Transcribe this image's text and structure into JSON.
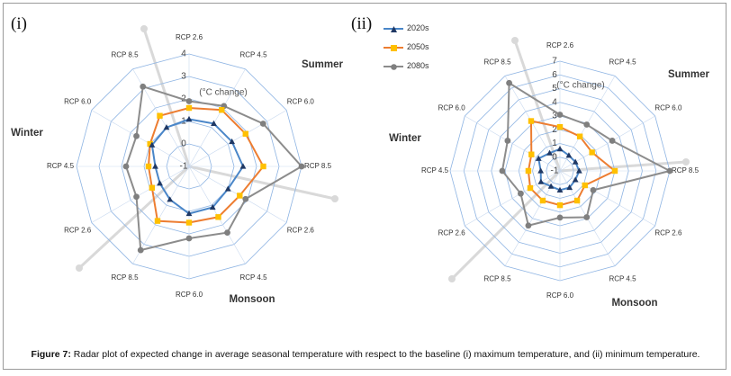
{
  "caption": {
    "label": "Figure 7:",
    "text": " Radar plot of expected change in average seasonal temperature with respect to the baseline (i) maximum temperature, and (ii) minimum temperature."
  },
  "seasons": {
    "summer": "Summer",
    "monsoon": "Monsoon",
    "winter": "Winter"
  },
  "colors": {
    "s2020": "#4a86c8",
    "s2050": "#ed7d31",
    "s2080": "#8c8c8c",
    "grid": "#8eb4e3",
    "season_axis": "#d9d9d9"
  },
  "legend": [
    "2020s",
    "2050s",
    "2080s"
  ],
  "chart_data": [
    {
      "panel": "(i)",
      "type": "radar",
      "unit_label": "(°C change)",
      "categories": [
        "RCP 2.6",
        "RCP 4.5",
        "RCP 6.0",
        "RCP 8.5",
        "RCP 2.6",
        "RCP 4.5",
        "RCP 6.0",
        "RCP 8.5",
        "RCP 2.6",
        "RCP 4.5",
        "RCP 6.0",
        "RCP 8.5"
      ],
      "ticks": [
        -1,
        0,
        1,
        2,
        3,
        4
      ],
      "rlim": [
        -1,
        4
      ],
      "series": [
        {
          "name": "2020s",
          "values": [
            1.1,
            1.2,
            1.2,
            1.4,
            1.0,
            1.1,
            1.1,
            0.7,
            0.5,
            0.5,
            0.9,
            1.0
          ]
        },
        {
          "name": "2050s",
          "values": [
            1.6,
            1.9,
            1.9,
            2.3,
            1.6,
            1.6,
            1.5,
            1.8,
            0.9,
            0.8,
            1.0,
            1.6
          ]
        },
        {
          "name": "2080s",
          "values": [
            1.9,
            2.1,
            2.8,
            4.0,
            1.9,
            2.4,
            2.2,
            3.3,
            1.7,
            1.8,
            1.7,
            3.1
          ]
        }
      ]
    },
    {
      "panel": "(ii)",
      "type": "radar",
      "unit_label": "(°C change)",
      "categories": [
        "RCP 2.6",
        "RCP 4.5",
        "RCP 6.0",
        "RCP 8.5",
        "RCP 2.6",
        "RCP 4.5",
        "RCP 6.0",
        "RCP 8.5",
        "RCP 2.6",
        "RCP 4.5",
        "RCP 6.0",
        "RCP 8.5"
      ],
      "ticks": [
        -1,
        0,
        1,
        2,
        3,
        4,
        5,
        6,
        7
      ],
      "rlim": [
        -1,
        7
      ],
      "series": [
        {
          "name": "2020s",
          "values": [
            0.6,
            0.3,
            0.3,
            0.4,
            0.3,
            0.4,
            0.4,
            0.3,
            0.6,
            0.4,
            0.8,
            0.5
          ]
        },
        {
          "name": "2050s",
          "values": [
            2.2,
            1.9,
            1.7,
            3.0,
            1.1,
            1.5,
            1.5,
            1.5,
            1.5,
            1.3,
            1.4,
            3.2
          ]
        },
        {
          "name": "2080s",
          "values": [
            3.1,
            2.9,
            3.4,
            7.0,
            1.8,
            2.9,
            2.4,
            3.6,
            2.3,
            3.2,
            3.4,
            6.4
          ]
        }
      ]
    }
  ]
}
